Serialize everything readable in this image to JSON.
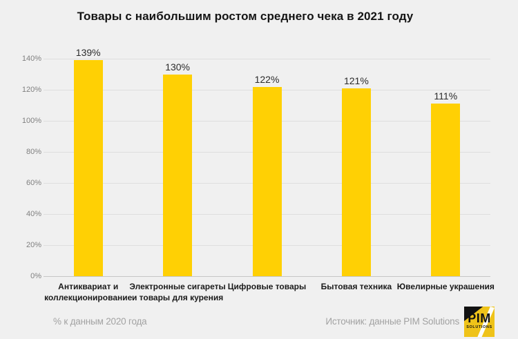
{
  "title": "Товары с наибольшим ростом среднего чека в 2021 году",
  "chart_data": {
    "type": "bar",
    "categories": [
      "Антиквариат и коллекционирование",
      "Электронные сигареты и товары для курения",
      "Цифровые товары",
      "Бытовая техника",
      "Ювелирные украшения"
    ],
    "category_lines": [
      [
        "Антиквариат и",
        "коллекционирование"
      ],
      [
        "Электронные сигареты",
        "и товары для курения"
      ],
      [
        "Цифровые товары"
      ],
      [
        "Бытовая техника"
      ],
      [
        "Ювелирные украшения"
      ]
    ],
    "values": [
      139,
      130,
      122,
      121,
      111
    ],
    "value_labels": [
      "139%",
      "130%",
      "122%",
      "121%",
      "111%"
    ],
    "ylim": [
      0,
      140
    ],
    "yticks": [
      0,
      20,
      40,
      60,
      80,
      100,
      120,
      140
    ],
    "ytick_labels": [
      "0%",
      "20%",
      "40%",
      "60%",
      "80%",
      "100%",
      "120%",
      "140%"
    ],
    "grid": true,
    "legend": "none",
    "bar_color": "#ffd004",
    "background_color": "#f0f0f0",
    "xlabel": "",
    "ylabel": ""
  },
  "footer": {
    "note": "% к данным 2020 года",
    "source": "Источник: данные PIM Solutions"
  },
  "logo": {
    "text": "PIM",
    "subtext": "SOLUTIONS",
    "bg_color": "#efc319",
    "accent_color": "#121212"
  }
}
